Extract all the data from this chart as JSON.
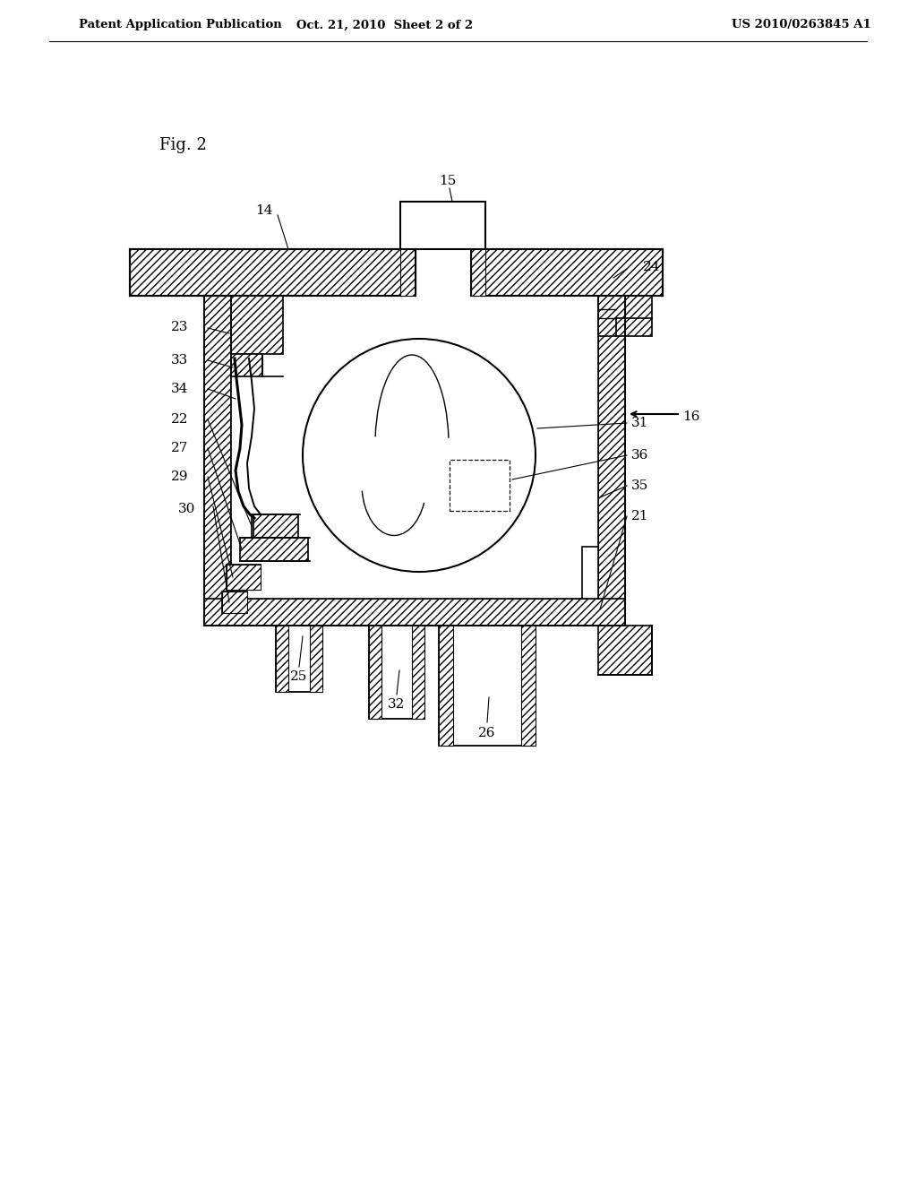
{
  "title_left": "Patent Application Publication",
  "title_mid": "Oct. 21, 2010  Sheet 2 of 2",
  "title_right": "US 2010/0263845 A1",
  "fig_label": "Fig. 2",
  "bg_color": "#ffffff",
  "line_color": "#1a1a1a",
  "header_fontsize": 9.5,
  "fig_label_fontsize": 13,
  "label_fontsize": 11
}
